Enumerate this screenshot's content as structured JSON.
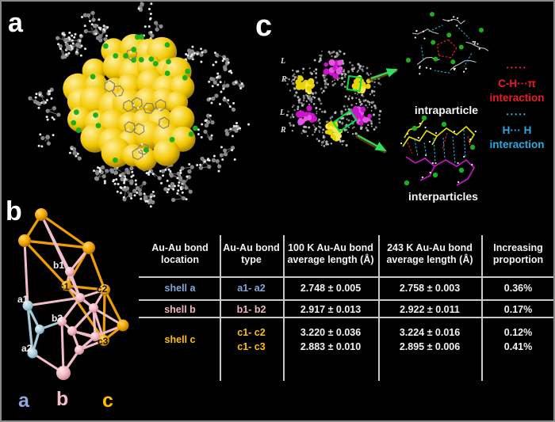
{
  "figure": {
    "panel_labels": {
      "a": "a",
      "b": "b",
      "c": "c"
    }
  },
  "panel_c": {
    "ring_labels": [
      "L",
      "R",
      "L",
      "R"
    ],
    "intraparticle_label": "intraparticle",
    "interparticles_label": "interparticles",
    "legend_red": {
      "dots": "•••••",
      "line1": "C-H···π",
      "line2": "interaction"
    },
    "legend_blue": {
      "dots": "•••••",
      "line1": "H··· H",
      "line2": "interaction"
    }
  },
  "panel_b": {
    "atom_labels": [
      "b1",
      "c1",
      "c2",
      "a1",
      "b2",
      "a2",
      "c3"
    ],
    "shell_letters": [
      "a",
      "b",
      "c"
    ]
  },
  "table": {
    "headers": [
      "Au-Au bond\nlocation",
      "Au-Au bond\ntype",
      "100 K Au-Au bond\naverage length (Å)",
      "243 K Au-Au bond\naverage length (Å)",
      "Increasing\nproportion"
    ],
    "rows": [
      {
        "location": "shell a",
        "type": "a1- a2",
        "len_100k": "2.748 ± 0.005",
        "len_243k": "2.758 ± 0.003",
        "increase": "0.36%"
      },
      {
        "location": "shell b",
        "type": "b1- b2",
        "len_100k": "2.917 ± 0.013",
        "len_243k": "2.922 ± 0.011",
        "increase": "0.17%"
      },
      {
        "location": "shell c",
        "type_1": "c1- c2",
        "type_2": "c1- c3",
        "len_100k_1": "3.220 ± 0.036",
        "len_100k_2": "2.883 ± 0.010",
        "len_243k_1": "3.224 ± 0.016",
        "len_243k_2": "2.895 ± 0.006",
        "increase_1": "0.12%",
        "increase_2": "0.41%"
      }
    ]
  },
  "colors": {
    "shell_a_text": "#7fa8d8",
    "shell_b_text": "#f0b6c2",
    "shell_c_text": "#ffc000",
    "letter_a": "#8fa9d8",
    "letter_b": "#f4bcc8",
    "letter_c": "#ffc000",
    "legend_red": "#ed1c24",
    "legend_blue": "#29abe2",
    "gold": "#f2c800",
    "magenta": "#cc14cc",
    "cluster_yellow": "#e8d200",
    "green_atom": "#1db01d",
    "arrow_green": "#2de060",
    "highlight_green": "#00e04a",
    "bond_orange": "#ef9f00",
    "bond_pink": "#f2bcc8",
    "bond_blue": "#a5cad8",
    "table_line": "#c9c9c9"
  }
}
